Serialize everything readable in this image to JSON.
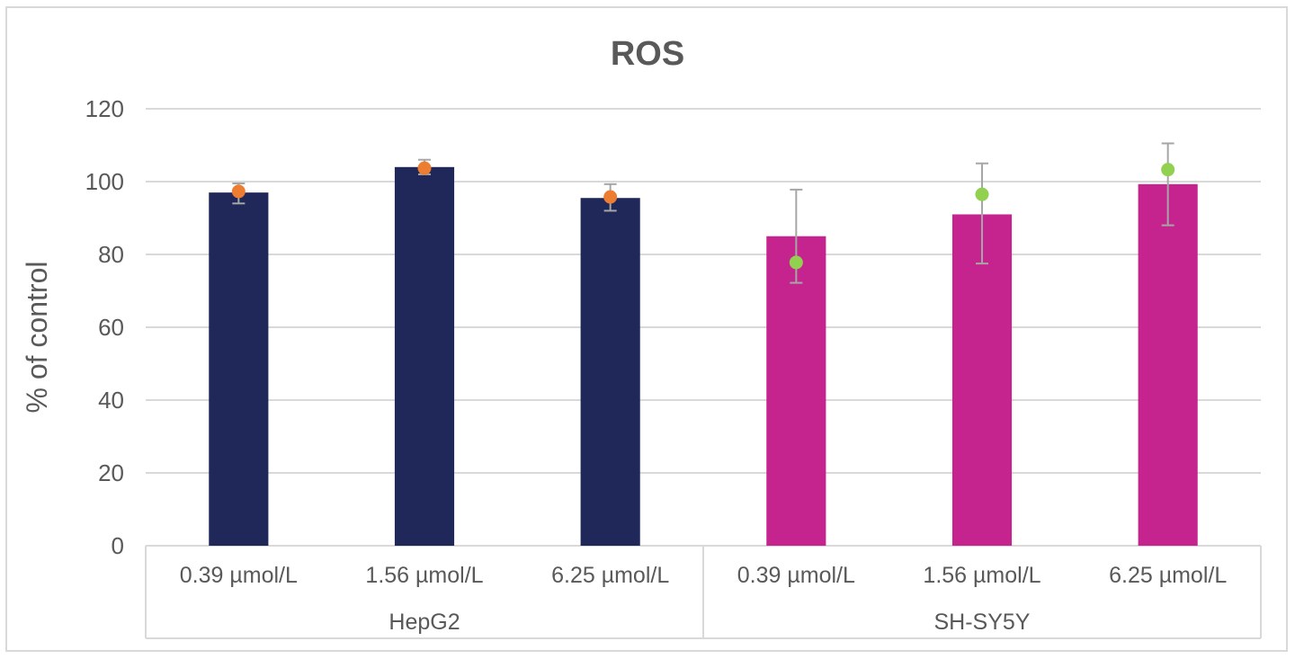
{
  "chart_data": {
    "type": "bar",
    "title": "ROS",
    "ylabel": "% of control",
    "xlabel": "",
    "ylim": [
      0,
      120
    ],
    "yticks": [
      0,
      20,
      40,
      60,
      80,
      100,
      120
    ],
    "grid": true,
    "groups": [
      {
        "name": "HepG2",
        "bar_color": "#1f2859",
        "marker_color": "#ed7d31",
        "categories": [
          "0.39 µmol/L",
          "1.56 µmol/L",
          "6.25 µmol/L"
        ],
        "values": [
          97,
          104,
          95.5
        ],
        "marker_values": [
          97.3,
          103.7,
          95.8
        ],
        "error_upper": [
          99.5,
          106,
          99.3
        ],
        "error_lower": [
          94,
          102,
          92
        ]
      },
      {
        "name": "SH-SY5Y",
        "bar_color": "#c5248f",
        "marker_color": "#92d050",
        "categories": [
          "0.39 µmol/L",
          "1.56 µmol/L",
          "6.25 µmol/L"
        ],
        "values": [
          85,
          91,
          99.3
        ],
        "marker_values": [
          77.8,
          96.5,
          103.3
        ],
        "error_upper": [
          97.8,
          105,
          110.5
        ],
        "error_lower": [
          72.2,
          77.5,
          88
        ]
      }
    ]
  }
}
